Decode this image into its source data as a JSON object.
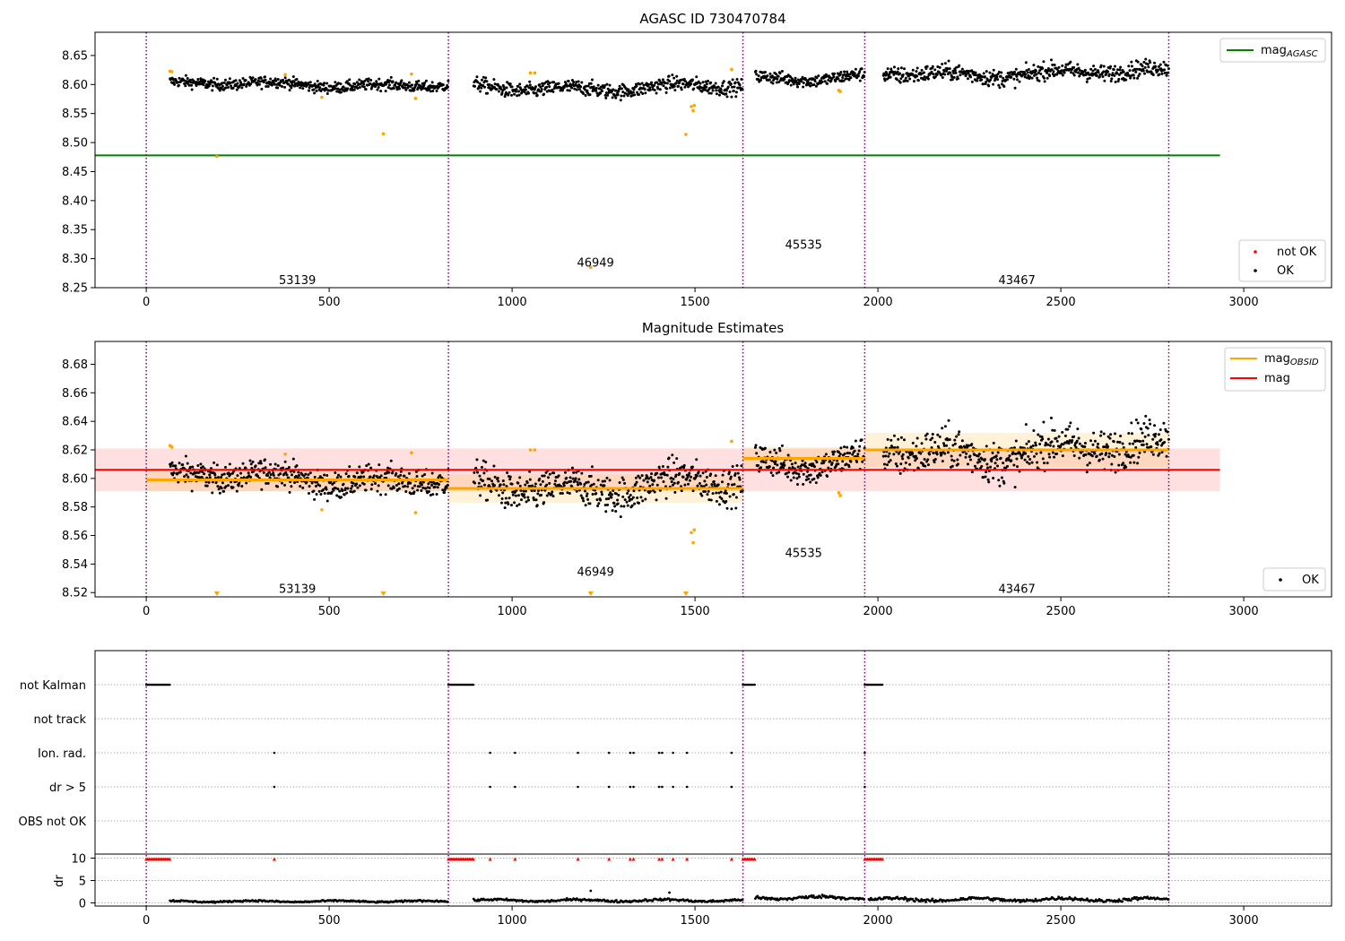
{
  "chart_data": [
    {
      "type": "scatter",
      "title": "AGASC ID 730470784",
      "xlim": [
        -140,
        3240
      ],
      "ylim": [
        8.25,
        8.69
      ],
      "xticks": [
        0,
        500,
        1000,
        1500,
        2000,
        2500,
        3000
      ],
      "yticks": [
        8.25,
        8.3,
        8.35,
        8.4,
        8.45,
        8.5,
        8.55,
        8.6,
        8.65
      ],
      "ytick_decimals": 2,
      "obs_boundaries": [
        0,
        826,
        1631,
        1964,
        2795
      ],
      "obs_labels": [
        {
          "text": "53139",
          "x": 413,
          "y": 8.264
        },
        {
          "text": "46949",
          "x": 1228,
          "y": 8.294
        },
        {
          "text": "45535",
          "x": 1797,
          "y": 8.325
        },
        {
          "text": "43467",
          "x": 2380,
          "y": 8.264
        }
      ],
      "segment_trends": [
        {
          "x0": 65,
          "x1": 826,
          "mean": 8.6,
          "noise": 0.006
        },
        {
          "x0": 895,
          "x1": 1631,
          "mean": 8.595,
          "noise": 0.008
        },
        {
          "x0": 1665,
          "x1": 1964,
          "mean": 8.613,
          "noise": 0.007
        },
        {
          "x0": 2015,
          "x1": 2795,
          "mean": 8.62,
          "noise": 0.009
        }
      ],
      "outliers": [
        {
          "x": 65,
          "y": 8.623
        },
        {
          "x": 70,
          "y": 8.622
        },
        {
          "x": 193,
          "y": 8.476
        },
        {
          "x": 380,
          "y": 8.617
        },
        {
          "x": 480,
          "y": 8.578
        },
        {
          "x": 648,
          "y": 8.515
        },
        {
          "x": 725,
          "y": 8.618
        },
        {
          "x": 736,
          "y": 8.576
        },
        {
          "x": 1050,
          "y": 8.62
        },
        {
          "x": 1062,
          "y": 8.62
        },
        {
          "x": 1215,
          "y": 8.285
        },
        {
          "x": 1475,
          "y": 8.514
        },
        {
          "x": 1490,
          "y": 8.562
        },
        {
          "x": 1495,
          "y": 8.555
        },
        {
          "x": 1498,
          "y": 8.564
        },
        {
          "x": 1600,
          "y": 8.626
        },
        {
          "x": 1893,
          "y": 8.59
        },
        {
          "x": 1897,
          "y": 8.588
        }
      ],
      "reference_lines": [
        {
          "name": "magAGASC",
          "y": 8.478,
          "x0": -140,
          "x1": 2935,
          "color": "#008000"
        }
      ],
      "legend_upper": {
        "position": "top-right",
        "label": "mag",
        "subscript": "AGASC"
      },
      "legend_lower": {
        "position": "bottom-right",
        "items": [
          "not OK",
          "OK"
        ]
      }
    },
    {
      "type": "scatter",
      "title": "Magnitude Estimates",
      "xlim": [
        -140,
        3240
      ],
      "ylim": [
        8.517,
        8.696
      ],
      "xticks": [
        0,
        500,
        1000,
        1500,
        2000,
        2500,
        3000
      ],
      "yticks": [
        8.52,
        8.54,
        8.56,
        8.58,
        8.6,
        8.62,
        8.64,
        8.66,
        8.68
      ],
      "ytick_decimals": 2,
      "obs_boundaries": [
        0,
        826,
        1631,
        1964,
        2795
      ],
      "obs_labels": [
        {
          "text": "53139",
          "x": 413,
          "y": 8.523
        },
        {
          "text": "46949",
          "x": 1228,
          "y": 8.535
        },
        {
          "text": "45535",
          "x": 1797,
          "y": 8.548
        },
        {
          "text": "43467",
          "x": 2380,
          "y": 8.523
        }
      ],
      "mag": {
        "value": 8.606,
        "band": [
          8.591,
          8.621
        ],
        "x0": -140,
        "x1": 2935,
        "color": "#ff0000"
      },
      "mag_obsid": [
        {
          "x0": 0,
          "x1": 826,
          "value": 8.599,
          "band": [
            8.591,
            8.607
          ]
        },
        {
          "x0": 826,
          "x1": 1631,
          "value": 8.593,
          "band": [
            8.583,
            8.603
          ]
        },
        {
          "x0": 1631,
          "x1": 1964,
          "value": 8.614,
          "band": [
            8.606,
            8.622
          ]
        },
        {
          "x0": 1964,
          "x1": 2795,
          "value": 8.62,
          "band": [
            8.608,
            8.632
          ]
        }
      ],
      "down_markers": [
        193,
        648,
        1215,
        1475
      ],
      "legend_upper": {
        "position": "top-right",
        "items": [
          {
            "label": "mag",
            "subscript": "OBSID",
            "color": "#ffa500"
          },
          {
            "label": "mag",
            "subscript": "",
            "color": "#ff0000"
          }
        ]
      },
      "legend_lower": {
        "position": "bottom-right",
        "items": [
          "OK"
        ]
      }
    },
    {
      "type": "scatter",
      "xlim": [
        -140,
        3240
      ],
      "xticks": [
        0,
        500,
        1000,
        1500,
        2000,
        2500,
        3000
      ],
      "flag_rows": [
        "not Kalman",
        "not track",
        "Ion. rad.",
        "dr > 5",
        "OBS not OK"
      ],
      "not_kalman_ranges": [
        [
          0,
          65
        ],
        [
          826,
          895
        ],
        [
          1631,
          1665
        ],
        [
          1964,
          2015
        ]
      ],
      "event_times": [
        350,
        940,
        1008,
        1180,
        1265,
        1323,
        1332,
        1402,
        1410,
        1440,
        1478,
        1600,
        1964
      ],
      "dr_ylim": [
        -0.3,
        10.3
      ],
      "dr_yticks": [
        0,
        5,
        10
      ],
      "dr_ylabel": "dr",
      "dr_spikes": [
        {
          "x": 1215,
          "y": 2.7
        },
        {
          "x": 1430,
          "y": 2.3
        }
      ],
      "dr_segments": [
        {
          "x0": 65,
          "x1": 826,
          "base": 0.35,
          "amp": 0.25
        },
        {
          "x0": 895,
          "x1": 1631,
          "base": 0.55,
          "amp": 0.35
        },
        {
          "x0": 1665,
          "x1": 1964,
          "base": 1.15,
          "amp": 0.5
        },
        {
          "x0": 1975,
          "x1": 2795,
          "base": 0.75,
          "amp": 0.5
        }
      ]
    }
  ]
}
